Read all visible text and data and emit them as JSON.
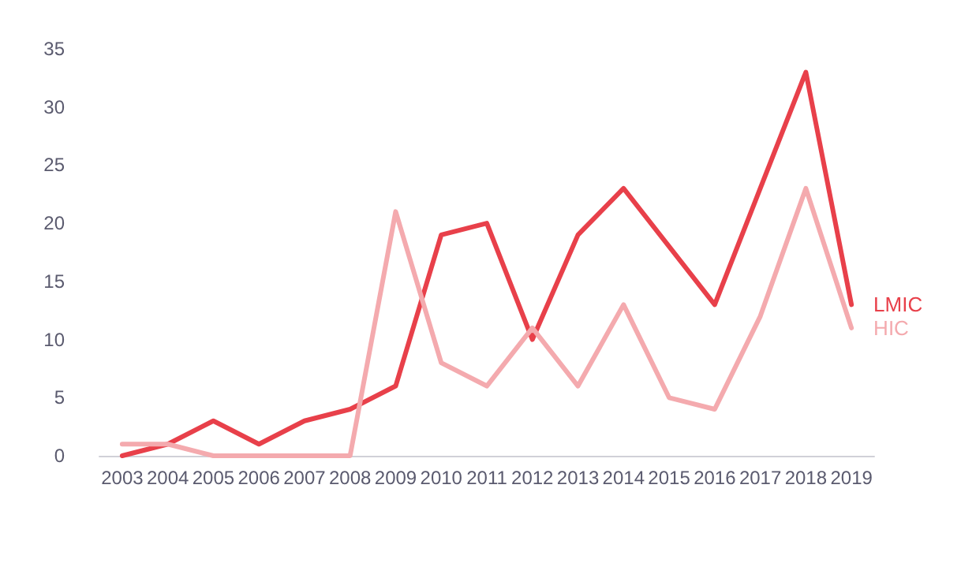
{
  "chart_data": {
    "type": "line",
    "categories": [
      "2003",
      "2004",
      "2005",
      "2006",
      "2007",
      "2008",
      "2009",
      "2010",
      "2011",
      "2012",
      "2013",
      "2014",
      "2015",
      "2016",
      "2017",
      "2018",
      "2019"
    ],
    "series": [
      {
        "name": "LMIC",
        "color": "#e8404a",
        "values": [
          0,
          1,
          3,
          1,
          3,
          4,
          6,
          19,
          20,
          10,
          19,
          23,
          18,
          13,
          23,
          33,
          13
        ]
      },
      {
        "name": "HIC",
        "color": "#f4aaae",
        "values": [
          1,
          1,
          0,
          0,
          0,
          0,
          21,
          8,
          6,
          11,
          6,
          13,
          5,
          4,
          12,
          23,
          11
        ]
      }
    ],
    "ylim": [
      0,
      35
    ],
    "yticks": [
      0,
      5,
      10,
      15,
      20,
      25,
      30,
      35
    ],
    "grid": false,
    "legend": false,
    "marker": "none",
    "line_style": "solid"
  }
}
